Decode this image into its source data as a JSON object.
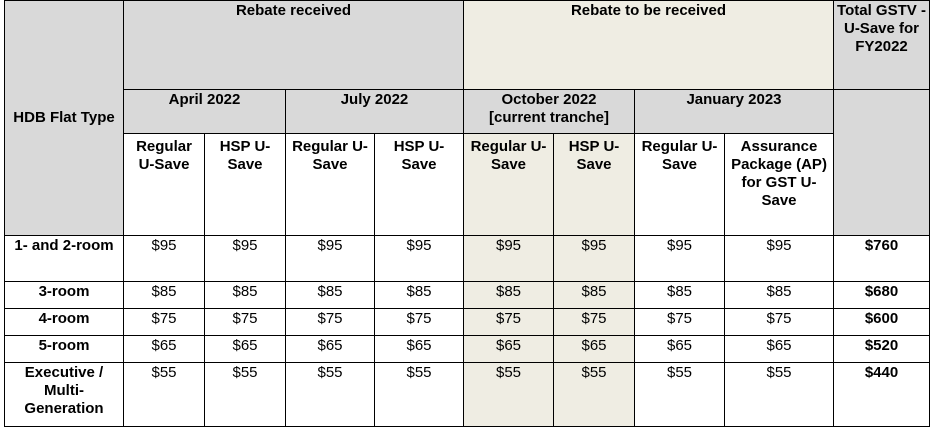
{
  "headers": {
    "flat_type": "HDB Flat Type",
    "received": "Rebate received",
    "to_be_received": "Rebate to be received",
    "total": "Total GSTV -U-Save for FY2022",
    "periods": {
      "apr": "April 2022",
      "jul": "July 2022",
      "oct": "October 2022",
      "oct_note": "[current tranche]",
      "jan": "January 2023"
    },
    "sub": {
      "apr_regular": "Regular U-Save",
      "apr_hsp": "HSP U-Save",
      "jul_regular": "Regular U-Save",
      "jul_hsp": "HSP U-Save",
      "oct_regular": "Regular U-Save",
      "oct_hsp": "HSP U-Save",
      "jan_regular": "Regular U-Save",
      "jan_ap": "Assurance Package (AP) for GST U-Save"
    }
  },
  "rows": [
    {
      "type": "1- and 2-room",
      "values": [
        "$95",
        "$95",
        "$95",
        "$95",
        "$95",
        "$95",
        "$95",
        "$95"
      ],
      "total": "$760"
    },
    {
      "type": "3-room",
      "values": [
        "$85",
        "$85",
        "$85",
        "$85",
        "$85",
        "$85",
        "$85",
        "$85"
      ],
      "total": "$680"
    },
    {
      "type": "4-room",
      "values": [
        "$75",
        "$75",
        "$75",
        "$75",
        "$75",
        "$75",
        "$75",
        "$75"
      ],
      "total": "$600"
    },
    {
      "type": "5-room",
      "values": [
        "$65",
        "$65",
        "$65",
        "$65",
        "$65",
        "$65",
        "$65",
        "$65"
      ],
      "total": "$520"
    },
    {
      "type": "Executive / Multi-Generation",
      "values": [
        "$55",
        "$55",
        "$55",
        "$55",
        "$55",
        "$55",
        "$55",
        "$55"
      ],
      "total": "$440"
    }
  ],
  "colors": {
    "header_grey": "#d9d9d9",
    "current_tranche_beige": "#efede3"
  }
}
